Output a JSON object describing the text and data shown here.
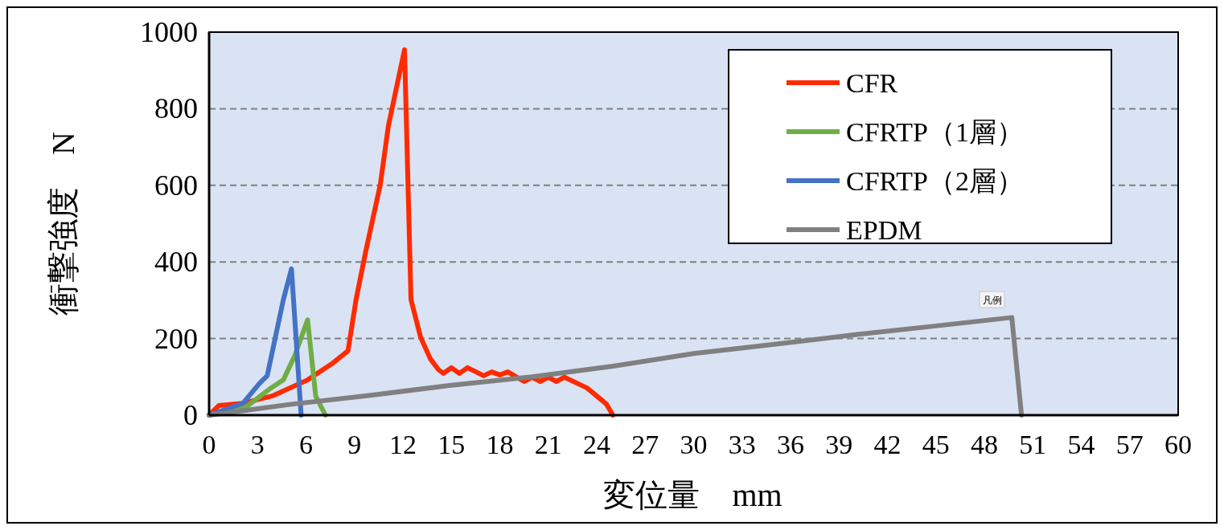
{
  "chart_data": {
    "type": "line",
    "xlabel": "変位量　mm",
    "ylabel": "衝撃強度　N",
    "xlim": [
      0,
      60
    ],
    "ylim": [
      0,
      1000
    ],
    "xticks": [
      0,
      3,
      6,
      9,
      12,
      15,
      18,
      21,
      24,
      27,
      30,
      33,
      36,
      39,
      42,
      45,
      48,
      51,
      54,
      57,
      60
    ],
    "yticks": [
      0,
      200,
      400,
      600,
      800,
      1000
    ],
    "grid": "y",
    "legend": "top right",
    "line_style": "solid",
    "marker": "none",
    "annotations": [
      "凡例"
    ],
    "series": [
      {
        "name": "CFR",
        "color": "#ff2a00",
        "x": [
          0,
          0.6,
          2.1,
          3.9,
          6.1,
          7.6,
          8.6,
          9.1,
          9.7,
          10.6,
          11.1,
          12.1,
          12.5,
          13.1,
          13.7,
          14.2,
          14.5,
          15,
          15.5,
          16,
          17,
          17.5,
          18,
          18.5,
          19.5,
          20,
          20.5,
          21,
          21.5,
          22,
          23.4,
          24.6,
          25
        ],
        "values": [
          0,
          25,
          31,
          50,
          92,
          134,
          168,
          302,
          428,
          602,
          755,
          954,
          302,
          203,
          147,
          119,
          109,
          124,
          109,
          124,
          103,
          113,
          105,
          113,
          88,
          99,
          88,
          99,
          88,
          99,
          71,
          29,
          0
        ]
      },
      {
        "name": "CFRTP（1層）",
        "color": "#70ad47",
        "x": [
          0,
          2.4,
          3.7,
          4.6,
          5.3,
          6.1,
          6.6,
          7.2
        ],
        "values": [
          0,
          25,
          67,
          92,
          155,
          249,
          50,
          0
        ]
      },
      {
        "name": "CFRTP（2層）",
        "color": "#4472c4",
        "x": [
          0,
          2.1,
          3.1,
          3.6,
          4.6,
          5.1,
          5.7
        ],
        "values": [
          0,
          31,
          82,
          103,
          302,
          382,
          0
        ]
      },
      {
        "name": "EPDM",
        "color": "#808080",
        "x": [
          0,
          5,
          10,
          15,
          20,
          25,
          30,
          35,
          40,
          45,
          49.7,
          50.3
        ],
        "values": [
          0,
          28,
          52,
          78,
          100,
          128,
          161,
          185,
          210,
          233,
          255,
          0
        ]
      }
    ]
  }
}
